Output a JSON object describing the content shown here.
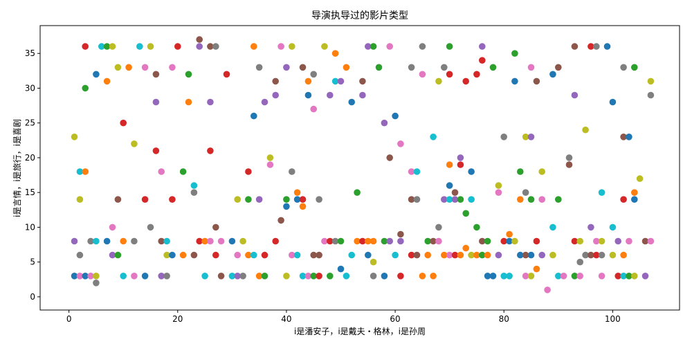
{
  "chart_data": {
    "type": "scatter",
    "title": "导演执导过的影片类型",
    "xlabel": "i是潘安子，i是戴夫・格林，i是孙周",
    "ylabel": "i是言情，i是旅行，i是喜剧",
    "xlim": [
      -5.3,
      112.3
    ],
    "ylim": [
      -1.9,
      39.0
    ],
    "xticks": [
      0,
      20,
      40,
      60,
      80,
      100
    ],
    "yticks": [
      0,
      5,
      10,
      15,
      20,
      25,
      30,
      35
    ],
    "grid": false,
    "legend": "none",
    "palette": [
      "#1f77b4",
      "#ff7f0e",
      "#2ca02c",
      "#d62728",
      "#9467bd",
      "#8c564b",
      "#e377c2",
      "#7f7f7f",
      "#bcbd22",
      "#17becf"
    ],
    "points": [
      [
        1,
        23,
        8
      ],
      [
        1,
        8,
        4
      ],
      [
        1,
        3,
        0
      ],
      [
        2,
        18,
        9
      ],
      [
        2,
        14,
        8
      ],
      [
        2,
        6,
        7
      ],
      [
        2,
        3,
        6
      ],
      [
        3,
        30,
        2
      ],
      [
        3,
        36,
        3
      ],
      [
        3,
        18,
        1
      ],
      [
        3,
        3,
        0
      ],
      [
        4,
        8,
        7
      ],
      [
        4,
        3,
        6
      ],
      [
        5,
        32,
        0
      ],
      [
        5,
        8,
        9
      ],
      [
        5,
        3,
        8
      ],
      [
        5,
        2,
        7
      ],
      [
        6,
        36,
        9
      ],
      [
        7,
        36,
        2
      ],
      [
        7,
        31,
        1
      ],
      [
        7,
        8,
        0
      ],
      [
        8,
        36,
        8
      ],
      [
        8,
        10,
        6
      ],
      [
        8,
        6,
        4
      ],
      [
        9,
        33,
        8
      ],
      [
        9,
        14,
        5
      ],
      [
        9,
        6,
        2
      ],
      [
        10,
        25,
        3
      ],
      [
        10,
        8,
        1
      ],
      [
        10,
        3,
        9
      ],
      [
        11,
        33,
        1
      ],
      [
        12,
        22,
        8
      ],
      [
        12,
        8,
        7
      ],
      [
        12,
        3,
        6
      ],
      [
        13,
        36,
        9
      ],
      [
        14,
        33,
        6
      ],
      [
        14,
        14,
        3
      ],
      [
        14,
        3,
        0
      ],
      [
        15,
        36,
        8
      ],
      [
        15,
        10,
        7
      ],
      [
        16,
        32,
        5
      ],
      [
        16,
        28,
        4
      ],
      [
        16,
        21,
        3
      ],
      [
        17,
        18,
        6
      ],
      [
        17,
        8,
        5
      ],
      [
        17,
        3,
        4
      ],
      [
        18,
        8,
        9
      ],
      [
        18,
        6,
        8
      ],
      [
        18,
        3,
        7
      ],
      [
        19,
        33,
        6
      ],
      [
        19,
        14,
        3
      ],
      [
        19,
        6,
        0
      ],
      [
        20,
        36,
        3
      ],
      [
        21,
        18,
        2
      ],
      [
        21,
        6,
        1
      ],
      [
        22,
        32,
        2
      ],
      [
        22,
        28,
        1
      ],
      [
        23,
        16,
        9
      ],
      [
        23,
        15,
        7
      ],
      [
        23,
        6,
        5
      ],
      [
        24,
        37,
        5
      ],
      [
        24,
        36,
        4
      ],
      [
        24,
        8,
        3
      ],
      [
        25,
        8,
        1
      ],
      [
        25,
        3,
        9
      ],
      [
        26,
        36,
        5
      ],
      [
        26,
        28,
        4
      ],
      [
        26,
        21,
        3
      ],
      [
        26,
        8,
        6
      ],
      [
        27,
        36,
        7
      ],
      [
        27,
        10,
        5
      ],
      [
        27,
        6,
        3
      ],
      [
        28,
        8,
        6
      ],
      [
        28,
        3,
        5
      ],
      [
        29,
        32,
        3
      ],
      [
        30,
        8,
        0
      ],
      [
        30,
        3,
        9
      ],
      [
        31,
        14,
        8
      ],
      [
        31,
        6,
        6
      ],
      [
        31,
        3,
        4
      ],
      [
        32,
        8,
        8
      ],
      [
        32,
        3,
        7
      ],
      [
        33,
        18,
        3
      ],
      [
        33,
        14,
        2
      ],
      [
        33,
        6,
        1
      ],
      [
        34,
        36,
        1
      ],
      [
        34,
        26,
        0
      ],
      [
        34,
        6,
        9
      ],
      [
        35,
        33,
        7
      ],
      [
        35,
        14,
        4
      ],
      [
        35,
        3,
        1
      ],
      [
        36,
        28,
        4
      ],
      [
        36,
        6,
        3
      ],
      [
        36,
        3,
        2
      ],
      [
        37,
        20,
        8
      ],
      [
        37,
        19,
        6
      ],
      [
        38,
        31,
        5
      ],
      [
        38,
        29,
        4
      ],
      [
        38,
        8,
        3
      ],
      [
        39,
        36,
        6
      ],
      [
        39,
        11,
        5
      ],
      [
        40,
        33,
        4
      ],
      [
        40,
        14,
        2
      ],
      [
        40,
        13,
        0
      ],
      [
        40,
        3,
        8
      ],
      [
        41,
        36,
        8
      ],
      [
        41,
        18,
        7
      ],
      [
        41,
        6,
        6
      ],
      [
        42,
        15,
        1
      ],
      [
        42,
        14,
        0
      ],
      [
        42,
        6,
        9
      ],
      [
        43,
        33,
        5
      ],
      [
        43,
        14,
        3
      ],
      [
        43,
        13,
        1
      ],
      [
        43,
        3,
        9
      ],
      [
        44,
        31,
        1
      ],
      [
        44,
        29,
        0
      ],
      [
        44,
        3,
        6
      ],
      [
        45,
        32,
        7
      ],
      [
        45,
        27,
        6
      ],
      [
        45,
        6,
        5
      ],
      [
        45,
        3,
        2
      ],
      [
        46,
        14,
        7
      ],
      [
        46,
        6,
        5
      ],
      [
        46,
        3,
        3
      ],
      [
        47,
        36,
        8
      ],
      [
        47,
        8,
        6
      ],
      [
        48,
        29,
        4
      ],
      [
        48,
        8,
        3
      ],
      [
        48,
        3,
        2
      ],
      [
        49,
        35,
        1
      ],
      [
        49,
        31,
        9
      ],
      [
        49,
        8,
        7
      ],
      [
        50,
        31,
        4
      ],
      [
        50,
        8,
        2
      ],
      [
        50,
        4,
        0
      ],
      [
        51,
        33,
        1
      ],
      [
        51,
        3,
        9
      ],
      [
        52,
        28,
        0
      ],
      [
        52,
        6,
        9
      ],
      [
        53,
        15,
        2
      ],
      [
        53,
        8,
        1
      ],
      [
        54,
        31,
        5
      ],
      [
        54,
        29,
        4
      ],
      [
        54,
        8,
        3
      ],
      [
        55,
        36,
        4
      ],
      [
        55,
        8,
        1
      ],
      [
        55,
        6,
        0
      ],
      [
        56,
        36,
        2
      ],
      [
        56,
        8,
        1
      ],
      [
        56,
        5,
        8
      ],
      [
        56,
        3,
        7
      ],
      [
        57,
        33,
        2
      ],
      [
        58,
        25,
        4
      ],
      [
        58,
        8,
        2
      ],
      [
        58,
        3,
        0
      ],
      [
        59,
        36,
        6
      ],
      [
        59,
        20,
        5
      ],
      [
        59,
        8,
        4
      ],
      [
        60,
        26,
        0
      ],
      [
        60,
        6,
        9
      ],
      [
        61,
        22,
        6
      ],
      [
        61,
        9,
        5
      ],
      [
        61,
        8,
        4
      ],
      [
        61,
        3,
        3
      ],
      [
        63,
        33,
        7
      ],
      [
        63,
        18,
        6
      ],
      [
        63,
        14,
        5
      ],
      [
        63,
        6,
        3
      ],
      [
        64,
        18,
        9
      ],
      [
        64,
        14,
        7
      ],
      [
        64,
        6,
        5
      ],
      [
        65,
        36,
        7
      ],
      [
        65,
        32,
        6
      ],
      [
        65,
        3,
        1
      ],
      [
        66,
        8,
        2
      ],
      [
        66,
        6,
        1
      ],
      [
        67,
        23,
        9
      ],
      [
        67,
        8,
        5
      ],
      [
        67,
        3,
        1
      ],
      [
        68,
        31,
        8
      ],
      [
        68,
        10,
        7
      ],
      [
        68,
        8,
        6
      ],
      [
        69,
        33,
        7
      ],
      [
        69,
        14,
        4
      ],
      [
        69,
        6,
        1
      ],
      [
        70,
        36,
        2
      ],
      [
        70,
        32,
        3
      ],
      [
        70,
        19,
        1
      ],
      [
        70,
        16,
        0
      ],
      [
        70,
        14,
        9
      ],
      [
        70,
        6,
        6
      ],
      [
        71,
        15,
        5
      ],
      [
        71,
        14,
        4
      ],
      [
        71,
        6,
        3
      ],
      [
        72,
        20,
        4
      ],
      [
        72,
        19,
        3
      ],
      [
        72,
        14,
        2
      ],
      [
        72,
        6,
        1
      ],
      [
        73,
        31,
        3
      ],
      [
        73,
        12,
        2
      ],
      [
        73,
        7,
        1
      ],
      [
        74,
        18,
        0
      ],
      [
        74,
        14,
        9
      ],
      [
        74,
        6,
        8
      ],
      [
        75,
        32,
        3
      ],
      [
        75,
        10,
        2
      ],
      [
        75,
        6,
        1
      ],
      [
        76,
        36,
        4
      ],
      [
        76,
        34,
        3
      ],
      [
        76,
        8,
        5
      ],
      [
        76,
        6,
        2
      ],
      [
        77,
        8,
        2
      ],
      [
        77,
        6,
        1
      ],
      [
        77,
        3,
        0
      ],
      [
        78,
        33,
        2
      ],
      [
        78,
        3,
        0
      ],
      [
        79,
        16,
        8
      ],
      [
        79,
        15,
        6
      ],
      [
        79,
        6,
        4
      ],
      [
        80,
        23,
        7
      ],
      [
        80,
        8,
        3
      ],
      [
        80,
        3,
        9
      ],
      [
        81,
        9,
        1
      ],
      [
        81,
        8,
        0
      ],
      [
        81,
        3,
        9
      ],
      [
        82,
        35,
        2
      ],
      [
        82,
        31,
        0
      ],
      [
        82,
        8,
        8
      ],
      [
        83,
        18,
        2
      ],
      [
        83,
        14,
        1
      ],
      [
        83,
        6,
        0
      ],
      [
        84,
        23,
        8
      ],
      [
        84,
        15,
        7
      ],
      [
        84,
        6,
        5
      ],
      [
        84,
        3,
        6
      ],
      [
        85,
        33,
        6
      ],
      [
        85,
        23,
        4
      ],
      [
        85,
        14,
        2
      ],
      [
        85,
        6,
        0
      ],
      [
        85,
        3,
        8
      ],
      [
        86,
        31,
        5
      ],
      [
        86,
        8,
        3
      ],
      [
        86,
        4,
        1
      ],
      [
        87,
        18,
        8
      ],
      [
        87,
        14,
        6
      ],
      [
        87,
        6,
        4
      ],
      [
        88,
        1,
        6
      ],
      [
        89,
        32,
        0
      ],
      [
        89,
        10,
        9
      ],
      [
        89,
        6,
        8
      ],
      [
        90,
        33,
        5
      ],
      [
        90,
        14,
        2
      ],
      [
        90,
        3,
        9
      ],
      [
        91,
        3,
        6
      ],
      [
        92,
        20,
        7
      ],
      [
        92,
        19,
        5
      ],
      [
        93,
        36,
        5
      ],
      [
        93,
        29,
        4
      ],
      [
        93,
        8,
        3
      ],
      [
        93,
        3,
        2
      ],
      [
        94,
        8,
        8
      ],
      [
        94,
        5,
        7
      ],
      [
        94,
        3,
        6
      ],
      [
        95,
        24,
        8
      ],
      [
        95,
        6,
        7
      ],
      [
        96,
        36,
        3
      ],
      [
        96,
        10,
        4
      ],
      [
        96,
        6,
        5
      ],
      [
        97,
        36,
        7
      ],
      [
        97,
        8,
        6
      ],
      [
        97,
        6,
        3
      ],
      [
        98,
        15,
        9
      ],
      [
        98,
        8,
        8
      ],
      [
        98,
        6,
        7
      ],
      [
        98,
        3,
        6
      ],
      [
        99,
        36,
        0
      ],
      [
        100,
        28,
        0
      ],
      [
        100,
        10,
        9
      ],
      [
        100,
        6,
        8
      ],
      [
        101,
        8,
        4
      ],
      [
        101,
        3,
        3
      ],
      [
        102,
        33,
        7
      ],
      [
        102,
        23,
        5
      ],
      [
        102,
        14,
        3
      ],
      [
        102,
        6,
        1
      ],
      [
        102,
        3,
        9
      ],
      [
        103,
        23,
        0
      ],
      [
        103,
        8,
        6
      ],
      [
        103,
        3,
        2
      ],
      [
        104,
        33,
        2
      ],
      [
        104,
        15,
        1
      ],
      [
        104,
        14,
        0
      ],
      [
        104,
        3,
        8
      ],
      [
        105,
        17,
        8
      ],
      [
        106,
        8,
        5
      ],
      [
        106,
        3,
        4
      ],
      [
        107,
        31,
        8
      ],
      [
        107,
        29,
        7
      ],
      [
        107,
        8,
        6
      ]
    ]
  }
}
